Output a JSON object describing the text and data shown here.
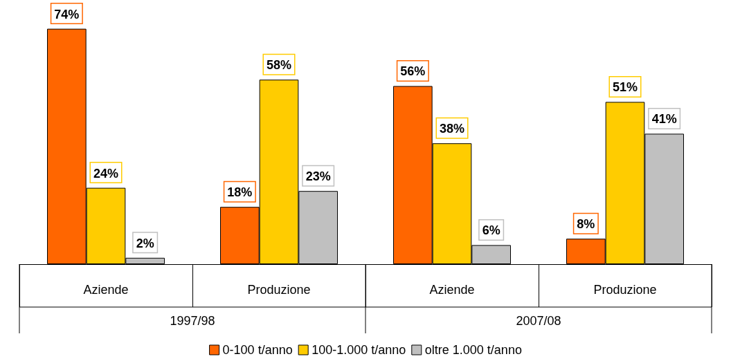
{
  "chart_data": {
    "type": "bar",
    "categories": [
      "Aziende",
      "Produzione",
      "Aziende",
      "Produzione"
    ],
    "annotations": [
      "1997/98",
      "2007/08"
    ],
    "series": [
      {
        "name": "0-100 t/anno",
        "color": "#ff6600",
        "values": [
          74,
          18,
          56,
          8
        ],
        "value_labels": [
          "74%",
          "18%",
          "56%",
          "8%"
        ]
      },
      {
        "name": "100-1.000 t/anno",
        "color": "#ffcc00",
        "values": [
          24,
          58,
          38,
          51
        ],
        "value_labels": [
          "24%",
          "58%",
          "38%",
          "51%"
        ]
      },
      {
        "name": "oltre 1.000 t/anno",
        "color": "#c0c0c0",
        "values": [
          2,
          23,
          6,
          41
        ],
        "value_labels": [
          "2%",
          "23%",
          "6%",
          "41%"
        ]
      }
    ],
    "legend": "bottom"
  }
}
